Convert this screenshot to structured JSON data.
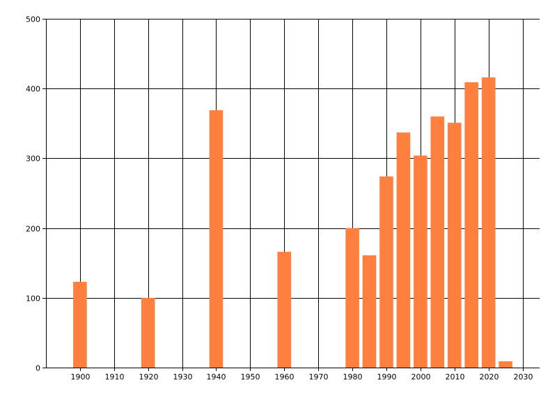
{
  "chart_data": {
    "type": "bar",
    "title": "",
    "xlabel": "",
    "ylabel": "",
    "x": [
      1900,
      1920,
      1940,
      1960,
      1980,
      1985,
      1990,
      1995,
      2000,
      2005,
      2010,
      2015,
      2020,
      2025
    ],
    "values": [
      123,
      100,
      369,
      166,
      200,
      161,
      274,
      337,
      304,
      360,
      351,
      409,
      416,
      9
    ],
    "xlim": [
      1890,
      2035
    ],
    "ylim": [
      0,
      500
    ],
    "x_ticks": [
      "1900",
      "1910",
      "1920",
      "1930",
      "1940",
      "1950",
      "1960",
      "1970",
      "1980",
      "1990",
      "2000",
      "2010",
      "2020",
      "2030"
    ],
    "y_ticks": [
      "0",
      "100",
      "200",
      "300",
      "400",
      "500"
    ],
    "grid": true,
    "legend": "none",
    "colors": {
      "bar": "#ff7f3f",
      "grid": "#000000",
      "axis": "#000000",
      "background": "#ffffff"
    }
  }
}
